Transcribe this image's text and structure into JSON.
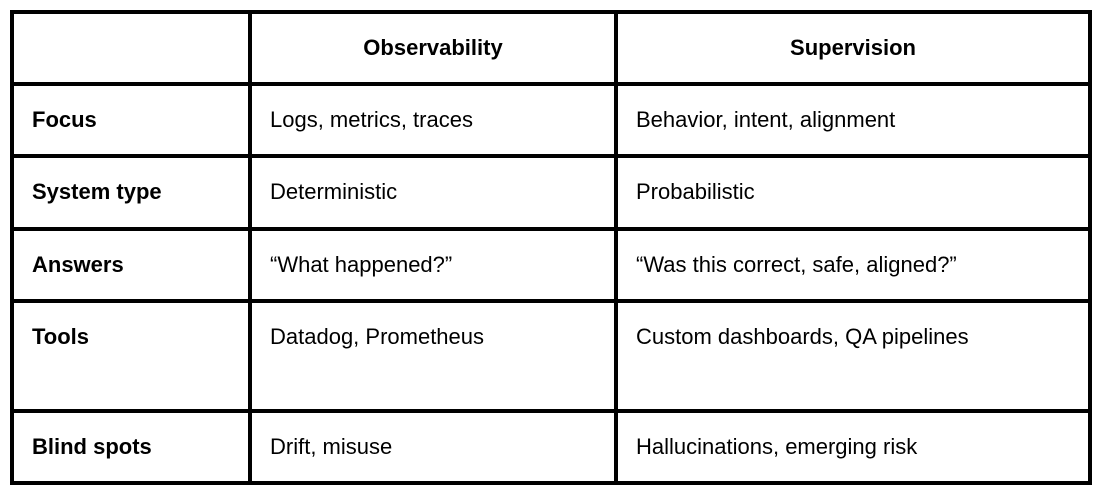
{
  "table": {
    "columns": [
      "",
      "Observability",
      "Supervision"
    ],
    "rows": [
      [
        "Focus",
        "Logs, metrics, traces",
        "Behavior, intent, alignment"
      ],
      [
        "System type",
        "Deterministic",
        "Probabilistic"
      ],
      [
        "Answers",
        "“What happened?”",
        "“Was this correct, safe, aligned?”"
      ],
      [
        "Tools",
        "Datadog, Prometheus",
        "Custom dashboards, QA pipelines"
      ],
      [
        "Blind spots",
        "Drift, misuse",
        "Hallucinations, emerging risk"
      ]
    ],
    "colors": {
      "border": "#000000",
      "text": "#000000",
      "background": "#ffffff"
    }
  }
}
